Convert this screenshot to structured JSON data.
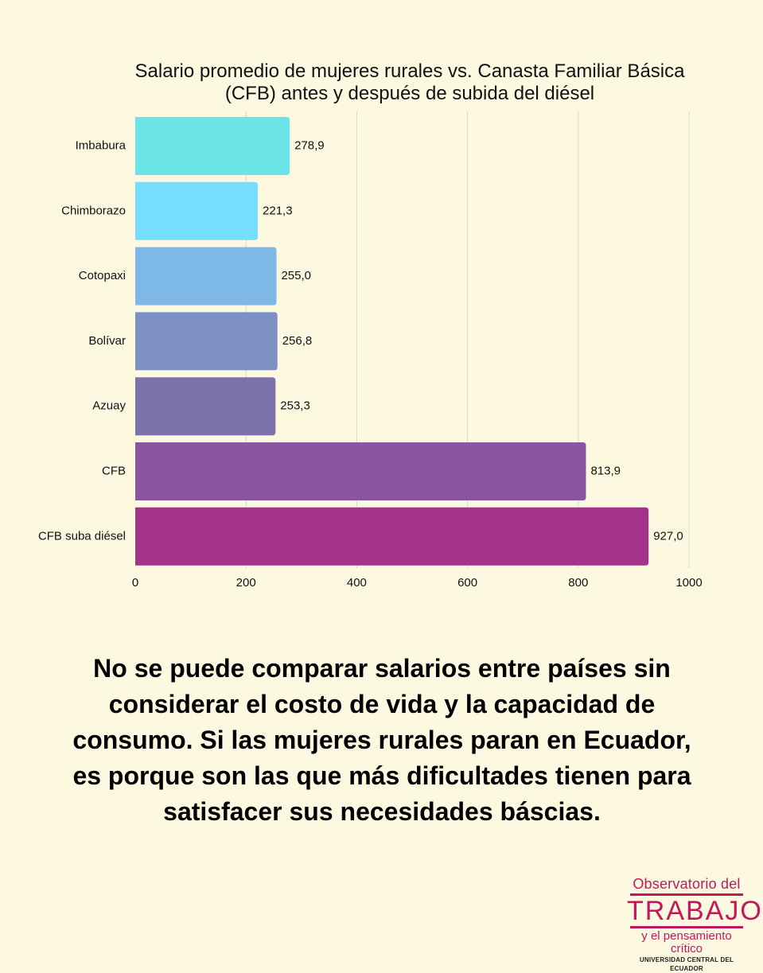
{
  "chart_data": {
    "type": "bar",
    "orientation": "horizontal",
    "title": "Salario promedio de mujeres rurales vs. Canasta Familiar Básica (CFB) antes y después de subida del diésel",
    "categories": [
      "Imbabura",
      "Chimborazo",
      "Cotopaxi",
      "Bolívar",
      "Azuay",
      "CFB",
      "CFB suba diésel"
    ],
    "values": [
      278.9,
      221.3,
      255.0,
      256.8,
      253.3,
      813.9,
      927.0
    ],
    "value_labels": [
      "278,9",
      "221,3",
      "255,0",
      "256,8",
      "253,3",
      "813,9",
      "927,0"
    ],
    "colors": [
      "#6ae4e6",
      "#76ddfc",
      "#7db8e6",
      "#7c90c4",
      "#7b72ac",
      "#8b56a0",
      "#a33389"
    ],
    "xlim": [
      0,
      1000
    ],
    "xticks": [
      0,
      200,
      400,
      600,
      800,
      1000
    ],
    "xtick_labels": [
      "0",
      "200",
      "400",
      "600",
      "800",
      "1000"
    ],
    "grid": "vertical",
    "legend": "none"
  },
  "note": "No se puede comparar salarios entre países sin considerar el costo de vida y la capacidad de consumo. Si las mujeres rurales paran en Ecuador, es porque son las que más dificultades tienen para satisfacer sus necesidades báscias.",
  "logo": {
    "line1": "Observatorio del",
    "line2": "TRABAJO",
    "line3": "y el pensamiento crítico",
    "line4": "UNIVERSIDAD CENTRAL DEL ECUADOR",
    "color": "#c2185b"
  }
}
